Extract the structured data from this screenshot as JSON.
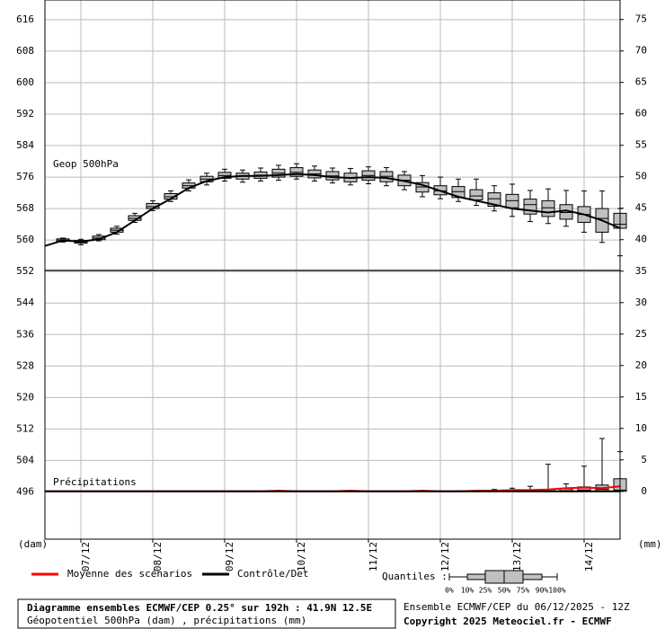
{
  "chart_data": {
    "type": "boxplot",
    "title": "Diagramme ensembles ECMWF/CEP 0.25° sur 192h : 41.9N 12.5E",
    "subtitle": "Géopotentiel 500hPa (dam) , précipitations (mm)",
    "run_label": "Ensemble ECMWF/CEP du 06/12/2025 - 12Z",
    "copyright": "Copyright 2025 Meteociel.fr - ECMWF",
    "y_unit": "(dam)",
    "y2_unit": "(mm)",
    "geop_label": "Geop 500hPa",
    "precip_label": "Précipitations",
    "quantiles_title": "Quantiles :",
    "quantile_labels": [
      "0%",
      "10%",
      "25%",
      "50%",
      "75%",
      "90%",
      "100%"
    ],
    "grid": true,
    "box_color": "#c0c0c0",
    "xlim": [
      0,
      192
    ],
    "xticks": [
      {
        "value": 12,
        "label": "07/12"
      },
      {
        "value": 36,
        "label": "08/12"
      },
      {
        "value": 60,
        "label": "09/12"
      },
      {
        "value": 84,
        "label": "10/12"
      },
      {
        "value": 108,
        "label": "11/12"
      },
      {
        "value": 132,
        "label": "12/12"
      },
      {
        "value": 156,
        "label": "13/12"
      },
      {
        "value": 180,
        "label": "14/12"
      }
    ],
    "ylim": [
      484,
      621
    ],
    "yticks": [
      496,
      504,
      512,
      520,
      528,
      536,
      544,
      552,
      560,
      568,
      576,
      584,
      592,
      600,
      608,
      616
    ],
    "y2lim": [
      -7.6,
      78.1
    ],
    "y2ticks": [
      0,
      5,
      10,
      15,
      20,
      25,
      30,
      35,
      40,
      45,
      50,
      55,
      60,
      65,
      70,
      75
    ],
    "x": [
      0,
      6,
      12,
      18,
      24,
      30,
      36,
      42,
      48,
      54,
      60,
      66,
      72,
      78,
      84,
      90,
      96,
      102,
      108,
      114,
      120,
      126,
      132,
      138,
      144,
      150,
      156,
      162,
      168,
      174,
      180,
      186,
      192
    ],
    "series": [
      {
        "name": "Moyenne des scénarios",
        "color": "#ff0000",
        "axis": "y2",
        "values": [
          0,
          0,
          0,
          0,
          0,
          0,
          0,
          0,
          0,
          0,
          0,
          0,
          0,
          0.1,
          0,
          0,
          0,
          0.1,
          0,
          0,
          0,
          0.1,
          0,
          0,
          0.1,
          0.1,
          0.2,
          0.2,
          0.3,
          0.5,
          0.6,
          0.5,
          0.8
        ]
      },
      {
        "name": "Contrôle/Det",
        "color": "#000000",
        "values": [
          558.5,
          559.9,
          559.6,
          560.2,
          562,
          565,
          568,
          570.5,
          573.2,
          575,
          576,
          576.3,
          576.3,
          576.5,
          576.8,
          576.5,
          576,
          575.8,
          576,
          575.8,
          575,
          574,
          572.5,
          571,
          570,
          569,
          568,
          567.5,
          567,
          567.5,
          566.5,
          565,
          563
        ]
      },
      {
        "color": "#000000",
        "axis": "y2",
        "values": [
          0,
          0,
          0,
          0,
          0,
          0,
          0,
          0,
          0,
          0,
          0,
          0,
          0,
          0,
          0,
          0,
          0,
          0,
          0,
          0,
          0,
          0,
          0,
          0,
          0,
          0,
          0,
          0,
          0,
          0,
          0,
          0,
          0
        ]
      }
    ],
    "boxes": [
      {
        "axis": "y",
        "x": [
          6,
          12,
          18,
          24,
          30,
          36,
          42,
          48,
          54,
          60,
          66,
          72,
          78,
          84,
          90,
          96,
          102,
          108,
          114,
          120,
          126,
          132,
          138,
          144,
          150,
          156,
          162,
          168,
          174,
          180,
          186,
          192
        ],
        "stats": [
          [
            559.5,
            559.7,
            560,
            560.3,
            560.5
          ],
          [
            558.8,
            559.2,
            559.5,
            559.9,
            560.2
          ],
          [
            559.8,
            560.1,
            560.5,
            561,
            561.4
          ],
          [
            561.5,
            562,
            562.5,
            563,
            563.5
          ],
          [
            564.5,
            565,
            565.5,
            566.2,
            566.8
          ],
          [
            567.5,
            568,
            568.5,
            569.3,
            570
          ],
          [
            569.8,
            570.4,
            571,
            571.8,
            572.5
          ],
          [
            572.5,
            573.2,
            573.8,
            574.5,
            575.3
          ],
          [
            574,
            574.8,
            575.5,
            576.2,
            577
          ],
          [
            575,
            575.7,
            576.4,
            577.2,
            578
          ],
          [
            574.7,
            575.5,
            576.2,
            577,
            577.8
          ],
          [
            575,
            575.7,
            576.5,
            577.3,
            578.3
          ],
          [
            575.2,
            576,
            577,
            578,
            579
          ],
          [
            575.5,
            576.2,
            577.2,
            578.4,
            579.4
          ],
          [
            575,
            575.8,
            576.8,
            577.8,
            578.8
          ],
          [
            574.5,
            575.3,
            576.3,
            577.4,
            578.3
          ],
          [
            574,
            574.8,
            575.8,
            577,
            578.2
          ],
          [
            574.3,
            575.2,
            576.4,
            577.6,
            578.6
          ],
          [
            573.8,
            574.8,
            576.2,
            577.4,
            578.4
          ],
          [
            572.8,
            573.8,
            575.2,
            576.5,
            577.4
          ],
          [
            571,
            572.2,
            573.5,
            574.6,
            576.4
          ],
          [
            570.5,
            571.5,
            572.5,
            573.8,
            576
          ],
          [
            569.8,
            570.8,
            572.3,
            573.6,
            575.5
          ],
          [
            568.8,
            570.2,
            571.2,
            572.8,
            575.5
          ],
          [
            567.4,
            568.6,
            570.5,
            572,
            573.8
          ],
          [
            566,
            568.2,
            570,
            571.6,
            574.2
          ],
          [
            564.7,
            566.6,
            569,
            570.4,
            572.6
          ],
          [
            564.2,
            566,
            568.2,
            570,
            573
          ],
          [
            563.5,
            565.3,
            567,
            569,
            572.6
          ],
          [
            562,
            564.5,
            566.5,
            568.5,
            572.5
          ],
          [
            559.4,
            562,
            565.5,
            568,
            572.5
          ],
          [
            556,
            563,
            564,
            566.8,
            568
          ]
        ]
      },
      {
        "axis": "y2",
        "x": [
          150,
          156,
          162,
          168,
          174,
          180,
          186,
          192
        ],
        "stats": [
          [
            0,
            0,
            0,
            0.1,
            0.3
          ],
          [
            0,
            0,
            0,
            0.1,
            0.5
          ],
          [
            0,
            0,
            0,
            0.2,
            0.8
          ],
          [
            0,
            0,
            0,
            0.3,
            4.3
          ],
          [
            0,
            0,
            0.1,
            0.4,
            1.2
          ],
          [
            0,
            0,
            0.2,
            0.7,
            4
          ],
          [
            0,
            0,
            0.3,
            1,
            8.4
          ],
          [
            0,
            0,
            0.2,
            2,
            6.3
          ]
        ]
      }
    ]
  }
}
